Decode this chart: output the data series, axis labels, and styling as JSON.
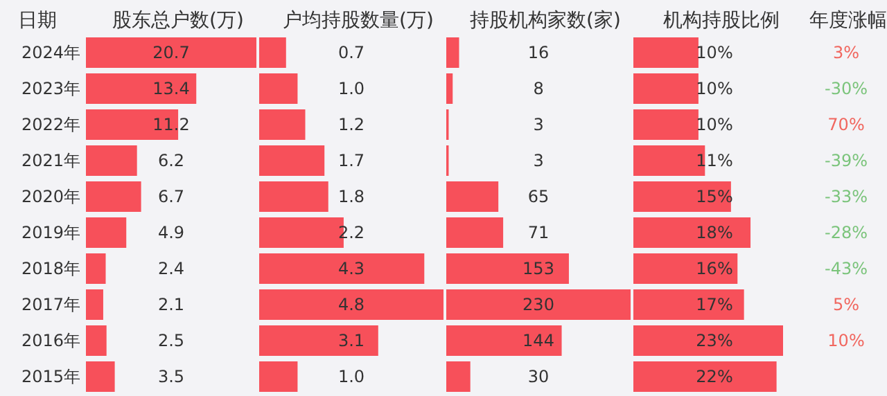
{
  "chart_data": [
    {
      "type": "bar",
      "orientation": "horizontal",
      "title": "股东总户数(万)",
      "ylabel": "日期",
      "categories": [
        "2024年",
        "2023年",
        "2022年",
        "2021年",
        "2020年",
        "2019年",
        "2018年",
        "2017年",
        "2016年",
        "2015年"
      ],
      "values": [
        20.7,
        13.4,
        11.2,
        6.2,
        6.7,
        4.9,
        2.4,
        2.1,
        2.5,
        3.5
      ],
      "color": "#f7505a",
      "xlim": [
        0,
        20.7
      ],
      "data_labels": true,
      "tick_labels": "y"
    },
    {
      "type": "bar",
      "orientation": "horizontal",
      "title": "户均持股数量(万)",
      "categories": [
        null,
        null,
        null,
        null,
        null,
        null,
        null,
        null,
        null,
        null
      ],
      "values": [
        0.7,
        1.0,
        1.2,
        1.7,
        1.8,
        2.2,
        4.3,
        4.8,
        3.1,
        1.0
      ],
      "value_labels": [
        "0.7",
        "1.0",
        "1.2",
        "1.7",
        "1.8",
        "2.2",
        "4.3",
        "4.8",
        "3.1",
        "1.0"
      ],
      "color": "#f7505a",
      "xlim": [
        0,
        4.8
      ],
      "tick_labels": false
    },
    {
      "type": "bar",
      "orientation": "horizontal",
      "title": "持股机构家数(家)",
      "categories": [
        null,
        null,
        null,
        null,
        null,
        null,
        null,
        null,
        null,
        null
      ],
      "values": [
        16,
        8,
        3,
        3,
        65,
        71,
        153,
        230,
        144,
        30
      ],
      "color": "#f7505a",
      "xlim": [
        0,
        230
      ],
      "data_labels": true,
      "tick_labels": false
    },
    {
      "type": "bar",
      "orientation": "horizontal",
      "title": "机构持股比例",
      "categories": [
        null,
        null,
        null,
        null,
        null,
        null,
        null,
        null,
        null,
        null
      ],
      "values": [
        10,
        10,
        10,
        11,
        15,
        18,
        16,
        17,
        23,
        22
      ],
      "value_labels": [
        "10%",
        "10%",
        "10%",
        "11%",
        "15%",
        "18%",
        "16%",
        "17%",
        "23%",
        "22%"
      ],
      "color": "#f7505a",
      "tick_labels": false
    },
    {
      "type": "other",
      "title": "年度涨幅",
      "categories": [
        null,
        null,
        null,
        null,
        null,
        null,
        null,
        null,
        null,
        null
      ],
      "values": [
        3,
        -30,
        70,
        -39,
        -33,
        -28,
        -43,
        5,
        10,
        null
      ],
      "value_labels": [
        "3%",
        "-30%",
        "70%",
        "-39%",
        "-33%",
        "-28%",
        "-43%",
        "5%",
        "10%",
        null
      ],
      "colors": [
        "#f0443a",
        "#5cb85c",
        "#f0443a",
        "#5cb85c",
        "#5cb85c",
        "#5cb85c",
        "#5cb85c",
        "#f0443a",
        "#f0443a",
        null
      ]
    }
  ]
}
